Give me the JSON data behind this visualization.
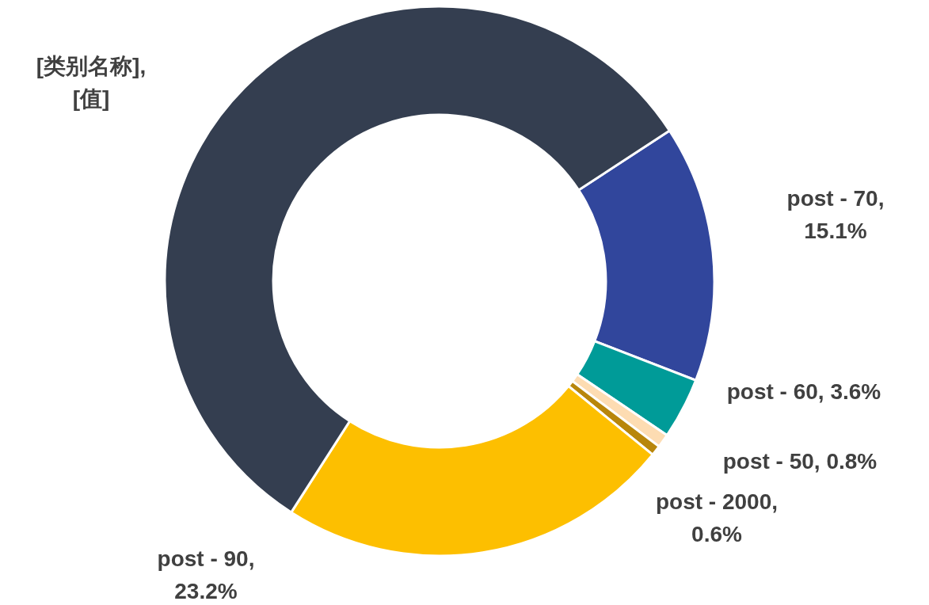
{
  "chart_data": {
    "type": "donut",
    "categories": [
      "post - 70, 15.1%",
      "post - 60, 3.6%",
      "post - 50, 0.8%",
      "post - 2000, 0.6%",
      "post - 90, 23.2%",
      "[类别名称], [值]"
    ],
    "values": [
      15.1,
      3.6,
      0.8,
      0.6,
      23.2,
      56.7
    ],
    "colors": [
      "#31469c",
      "#009b98",
      "#fddcb2",
      "#b8860b",
      "#fdbf00",
      "#343e50"
    ]
  }
}
